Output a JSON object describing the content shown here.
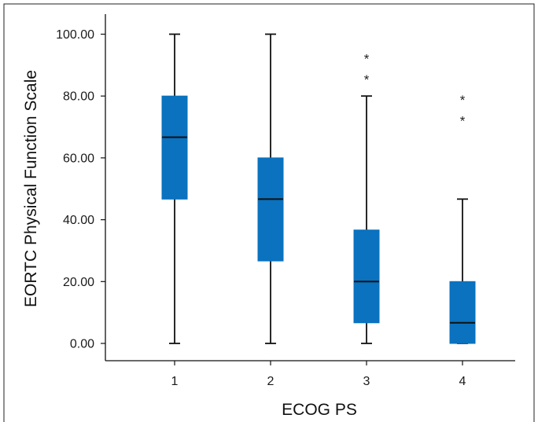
{
  "chart_data": {
    "type": "boxplot",
    "xlabel": "ECOG PS",
    "ylabel": "EORTC Physical Function Scale",
    "ylim": [
      0,
      100
    ],
    "yticks": [
      "0.00",
      "20.00",
      "40.00",
      "60.00",
      "80.00",
      "100.00"
    ],
    "ytick_values": [
      0,
      20,
      40,
      60,
      80,
      100
    ],
    "categories": [
      "1",
      "2",
      "3",
      "4"
    ],
    "box_color": "#0a72bf",
    "grid": false,
    "boxes": [
      {
        "category": "1",
        "min": 0,
        "q1": 46.67,
        "median": 66.67,
        "q3": 80,
        "max": 100,
        "outliers": []
      },
      {
        "category": "2",
        "min": 0,
        "q1": 26.67,
        "median": 46.67,
        "q3": 60,
        "max": 100,
        "outliers": []
      },
      {
        "category": "3",
        "min": 0,
        "q1": 6.67,
        "median": 20,
        "q3": 36.67,
        "max": 80,
        "outliers": [
          86.67,
          93.33
        ]
      },
      {
        "category": "4",
        "min": 0,
        "q1": 0,
        "median": 6.67,
        "q3": 20,
        "max": 46.67,
        "outliers": [
          73.33,
          80
        ]
      }
    ],
    "outlier_symbol": "*"
  }
}
